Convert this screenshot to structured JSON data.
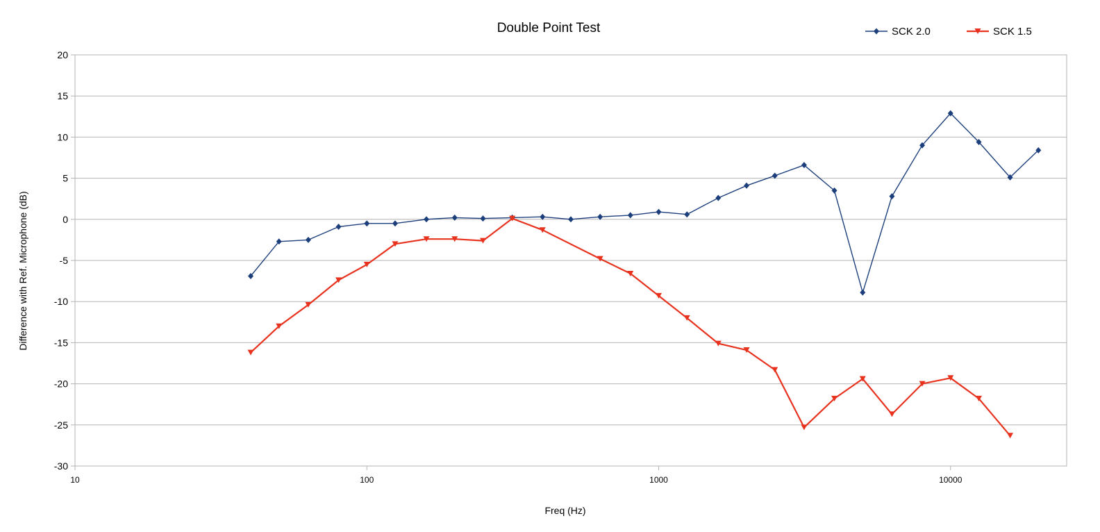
{
  "chart_data": {
    "type": "line",
    "title": "Double Point Test",
    "xlabel": "Freq (Hz)",
    "ylabel": "Difference with Ref. Microphone (dB)",
    "x_scale": "log",
    "xlim": [
      10,
      25000
    ],
    "ylim": [
      -30,
      20
    ],
    "x_ticks": [
      10,
      100,
      1000,
      10000
    ],
    "x_tick_labels": [
      "10",
      "100",
      "1000",
      "10000"
    ],
    "y_ticks": [
      -30,
      -25,
      -20,
      -15,
      -10,
      -5,
      0,
      5,
      10,
      15,
      20
    ],
    "y_tick_labels": [
      "-30",
      "-25",
      "-20",
      "-15",
      "-10",
      "-5",
      "0",
      "5",
      "10",
      "15",
      "20"
    ],
    "grid": "horizontal",
    "legend_position": "top-right",
    "series": [
      {
        "name": "SCK 2.0",
        "color": "#1c3f7c",
        "marker": "diamond",
        "x": [
          40,
          50,
          63,
          80,
          100,
          125,
          160,
          200,
          250,
          315,
          400,
          500,
          630,
          800,
          1000,
          1250,
          1600,
          2000,
          2500,
          3150,
          4000,
          5000,
          6300,
          8000,
          10000,
          12500,
          16000,
          20000
        ],
        "values": [
          -6.9,
          -2.7,
          -2.5,
          -0.9,
          -0.5,
          -0.5,
          0.0,
          0.2,
          0.1,
          0.2,
          0.3,
          0.0,
          0.3,
          0.5,
          0.9,
          0.6,
          2.6,
          4.1,
          5.3,
          6.6,
          3.5,
          -8.9,
          2.8,
          9.0,
          12.9,
          9.4,
          5.1,
          8.4
        ]
      },
      {
        "name": "SCK 1.5",
        "color": "#e8321e",
        "marker": "triangle-down",
        "x": [
          40,
          50,
          63,
          80,
          100,
          125,
          160,
          200,
          250,
          315,
          400,
          630,
          800,
          1000,
          1250,
          1600,
          2000,
          2500,
          3150,
          4000,
          5000,
          6300,
          8000,
          10000,
          12500,
          16000
        ],
        "values": [
          -16.2,
          -13.0,
          -10.4,
          -7.4,
          -5.5,
          -3.0,
          -2.4,
          -2.4,
          -2.6,
          0.1,
          -1.3,
          -4.8,
          -6.6,
          -9.3,
          -12.0,
          -15.1,
          -15.9,
          -18.3,
          -25.3,
          -21.8,
          -19.4,
          -23.7,
          -20.0,
          -19.3,
          -21.8,
          -26.3
        ]
      }
    ]
  }
}
